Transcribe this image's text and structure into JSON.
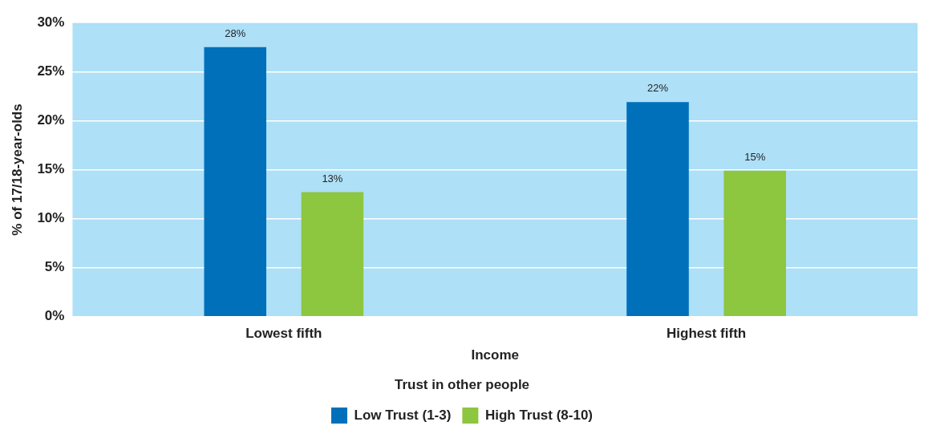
{
  "chart_data": {
    "type": "bar",
    "xlabel": "Income",
    "ylabel": "% of 17/18-year-olds",
    "legend_title": "Trust in other people",
    "categories": [
      "Lowest fifth",
      "Highest fifth"
    ],
    "series": [
      {
        "name": "Low Trust (1-3)",
        "color": "#0070bb",
        "values": [
          27.5,
          21.9
        ],
        "value_labels": [
          "28%",
          "22%"
        ]
      },
      {
        "name": "High Trust (8-10)",
        "color": "#8dc63f",
        "values": [
          12.7,
          14.9
        ],
        "value_labels": [
          "13%",
          "15%"
        ]
      }
    ],
    "ylim": [
      0,
      30
    ],
    "yticks": [
      {
        "value": 0,
        "label": "0%"
      },
      {
        "value": 5,
        "label": "5%"
      },
      {
        "value": 10,
        "label": "10%"
      },
      {
        "value": 15,
        "label": "15%"
      },
      {
        "value": 20,
        "label": "20%"
      },
      {
        "value": 25,
        "label": "25%"
      },
      {
        "value": 30,
        "label": "30%"
      }
    ],
    "grid": "y",
    "legend": "bottom"
  }
}
